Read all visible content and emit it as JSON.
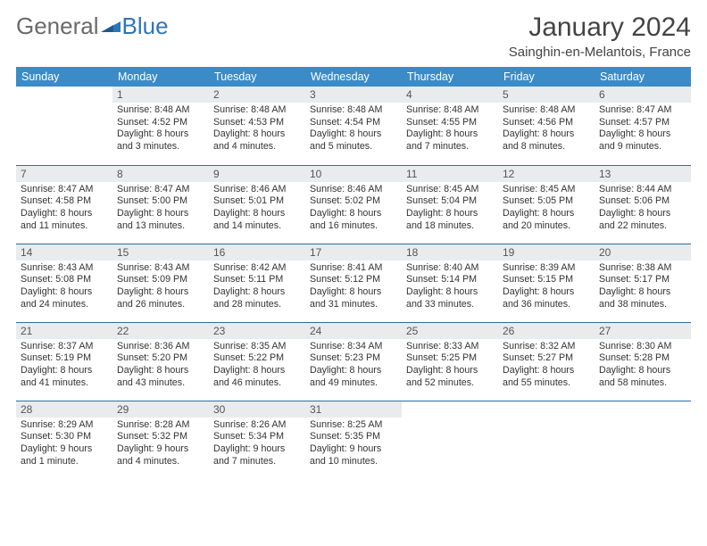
{
  "logo": {
    "text1": "General",
    "text2": "Blue"
  },
  "title": "January 2024",
  "location": "Sainghin-en-Melantois, France",
  "colors": {
    "header_bg": "#3b8bc8",
    "header_text": "#ffffff",
    "daynum_bg": "#e9ebed",
    "row_border": "#2e6da4",
    "logo_gray": "#6a6a6a",
    "logo_blue": "#2e75b6"
  },
  "weekdays": [
    "Sunday",
    "Monday",
    "Tuesday",
    "Wednesday",
    "Thursday",
    "Friday",
    "Saturday"
  ],
  "weeks": [
    [
      {
        "day": "",
        "sunrise": "",
        "sunset": "",
        "daylight": ""
      },
      {
        "day": "1",
        "sunrise": "Sunrise: 8:48 AM",
        "sunset": "Sunset: 4:52 PM",
        "daylight": "Daylight: 8 hours and 3 minutes."
      },
      {
        "day": "2",
        "sunrise": "Sunrise: 8:48 AM",
        "sunset": "Sunset: 4:53 PM",
        "daylight": "Daylight: 8 hours and 4 minutes."
      },
      {
        "day": "3",
        "sunrise": "Sunrise: 8:48 AM",
        "sunset": "Sunset: 4:54 PM",
        "daylight": "Daylight: 8 hours and 5 minutes."
      },
      {
        "day": "4",
        "sunrise": "Sunrise: 8:48 AM",
        "sunset": "Sunset: 4:55 PM",
        "daylight": "Daylight: 8 hours and 7 minutes."
      },
      {
        "day": "5",
        "sunrise": "Sunrise: 8:48 AM",
        "sunset": "Sunset: 4:56 PM",
        "daylight": "Daylight: 8 hours and 8 minutes."
      },
      {
        "day": "6",
        "sunrise": "Sunrise: 8:47 AM",
        "sunset": "Sunset: 4:57 PM",
        "daylight": "Daylight: 8 hours and 9 minutes."
      }
    ],
    [
      {
        "day": "7",
        "sunrise": "Sunrise: 8:47 AM",
        "sunset": "Sunset: 4:58 PM",
        "daylight": "Daylight: 8 hours and 11 minutes."
      },
      {
        "day": "8",
        "sunrise": "Sunrise: 8:47 AM",
        "sunset": "Sunset: 5:00 PM",
        "daylight": "Daylight: 8 hours and 13 minutes."
      },
      {
        "day": "9",
        "sunrise": "Sunrise: 8:46 AM",
        "sunset": "Sunset: 5:01 PM",
        "daylight": "Daylight: 8 hours and 14 minutes."
      },
      {
        "day": "10",
        "sunrise": "Sunrise: 8:46 AM",
        "sunset": "Sunset: 5:02 PM",
        "daylight": "Daylight: 8 hours and 16 minutes."
      },
      {
        "day": "11",
        "sunrise": "Sunrise: 8:45 AM",
        "sunset": "Sunset: 5:04 PM",
        "daylight": "Daylight: 8 hours and 18 minutes."
      },
      {
        "day": "12",
        "sunrise": "Sunrise: 8:45 AM",
        "sunset": "Sunset: 5:05 PM",
        "daylight": "Daylight: 8 hours and 20 minutes."
      },
      {
        "day": "13",
        "sunrise": "Sunrise: 8:44 AM",
        "sunset": "Sunset: 5:06 PM",
        "daylight": "Daylight: 8 hours and 22 minutes."
      }
    ],
    [
      {
        "day": "14",
        "sunrise": "Sunrise: 8:43 AM",
        "sunset": "Sunset: 5:08 PM",
        "daylight": "Daylight: 8 hours and 24 minutes."
      },
      {
        "day": "15",
        "sunrise": "Sunrise: 8:43 AM",
        "sunset": "Sunset: 5:09 PM",
        "daylight": "Daylight: 8 hours and 26 minutes."
      },
      {
        "day": "16",
        "sunrise": "Sunrise: 8:42 AM",
        "sunset": "Sunset: 5:11 PM",
        "daylight": "Daylight: 8 hours and 28 minutes."
      },
      {
        "day": "17",
        "sunrise": "Sunrise: 8:41 AM",
        "sunset": "Sunset: 5:12 PM",
        "daylight": "Daylight: 8 hours and 31 minutes."
      },
      {
        "day": "18",
        "sunrise": "Sunrise: 8:40 AM",
        "sunset": "Sunset: 5:14 PM",
        "daylight": "Daylight: 8 hours and 33 minutes."
      },
      {
        "day": "19",
        "sunrise": "Sunrise: 8:39 AM",
        "sunset": "Sunset: 5:15 PM",
        "daylight": "Daylight: 8 hours and 36 minutes."
      },
      {
        "day": "20",
        "sunrise": "Sunrise: 8:38 AM",
        "sunset": "Sunset: 5:17 PM",
        "daylight": "Daylight: 8 hours and 38 minutes."
      }
    ],
    [
      {
        "day": "21",
        "sunrise": "Sunrise: 8:37 AM",
        "sunset": "Sunset: 5:19 PM",
        "daylight": "Daylight: 8 hours and 41 minutes."
      },
      {
        "day": "22",
        "sunrise": "Sunrise: 8:36 AM",
        "sunset": "Sunset: 5:20 PM",
        "daylight": "Daylight: 8 hours and 43 minutes."
      },
      {
        "day": "23",
        "sunrise": "Sunrise: 8:35 AM",
        "sunset": "Sunset: 5:22 PM",
        "daylight": "Daylight: 8 hours and 46 minutes."
      },
      {
        "day": "24",
        "sunrise": "Sunrise: 8:34 AM",
        "sunset": "Sunset: 5:23 PM",
        "daylight": "Daylight: 8 hours and 49 minutes."
      },
      {
        "day": "25",
        "sunrise": "Sunrise: 8:33 AM",
        "sunset": "Sunset: 5:25 PM",
        "daylight": "Daylight: 8 hours and 52 minutes."
      },
      {
        "day": "26",
        "sunrise": "Sunrise: 8:32 AM",
        "sunset": "Sunset: 5:27 PM",
        "daylight": "Daylight: 8 hours and 55 minutes."
      },
      {
        "day": "27",
        "sunrise": "Sunrise: 8:30 AM",
        "sunset": "Sunset: 5:28 PM",
        "daylight": "Daylight: 8 hours and 58 minutes."
      }
    ],
    [
      {
        "day": "28",
        "sunrise": "Sunrise: 8:29 AM",
        "sunset": "Sunset: 5:30 PM",
        "daylight": "Daylight: 9 hours and 1 minute."
      },
      {
        "day": "29",
        "sunrise": "Sunrise: 8:28 AM",
        "sunset": "Sunset: 5:32 PM",
        "daylight": "Daylight: 9 hours and 4 minutes."
      },
      {
        "day": "30",
        "sunrise": "Sunrise: 8:26 AM",
        "sunset": "Sunset: 5:34 PM",
        "daylight": "Daylight: 9 hours and 7 minutes."
      },
      {
        "day": "31",
        "sunrise": "Sunrise: 8:25 AM",
        "sunset": "Sunset: 5:35 PM",
        "daylight": "Daylight: 9 hours and 10 minutes."
      },
      {
        "day": "",
        "sunrise": "",
        "sunset": "",
        "daylight": ""
      },
      {
        "day": "",
        "sunrise": "",
        "sunset": "",
        "daylight": ""
      },
      {
        "day": "",
        "sunrise": "",
        "sunset": "",
        "daylight": ""
      }
    ]
  ]
}
